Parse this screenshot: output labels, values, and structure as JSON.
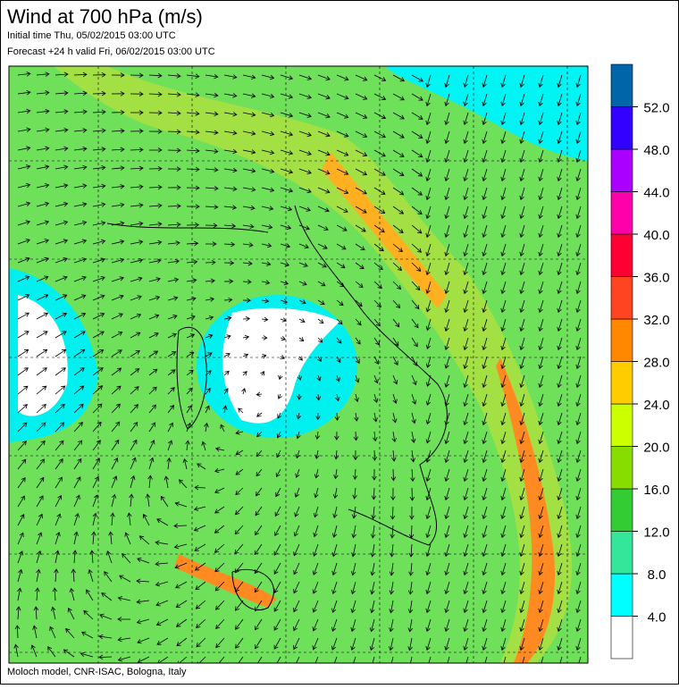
{
  "header": {
    "title": "Wind at 700 hPa (m/s)",
    "initial_time": "Initial time  Thu, 05/02/2015 03:00 UTC",
    "forecast": "Forecast +24 h valid  Fri, 06/02/2015 03:00 UTC"
  },
  "footer": "Moloch model, CNR-ISAC, Bologna, Italy",
  "colorbar": {
    "colors": [
      "#ffffff",
      "#00ffff",
      "#33e699",
      "#33cc33",
      "#88dd00",
      "#ccff00",
      "#ffcc00",
      "#ff8800",
      "#ff4422",
      "#ff0033",
      "#ff00aa",
      "#aa00ff",
      "#3300ff",
      "#0066aa"
    ],
    "levels": [
      {
        "value": 4,
        "label": "4.0"
      },
      {
        "value": 8,
        "label": "8.0"
      },
      {
        "value": 12,
        "label": "12.0"
      },
      {
        "value": 16,
        "label": "16.0"
      },
      {
        "value": 20,
        "label": "20.0"
      },
      {
        "value": 24,
        "label": "24.0"
      },
      {
        "value": 28,
        "label": "28.0"
      },
      {
        "value": 32,
        "label": "32.0"
      },
      {
        "value": 36,
        "label": "36.0"
      },
      {
        "value": 40,
        "label": "40.0"
      },
      {
        "value": 44,
        "label": "44.0"
      },
      {
        "value": 48,
        "label": "48.0"
      },
      {
        "value": 52,
        "label": "52.0"
      }
    ]
  }
}
